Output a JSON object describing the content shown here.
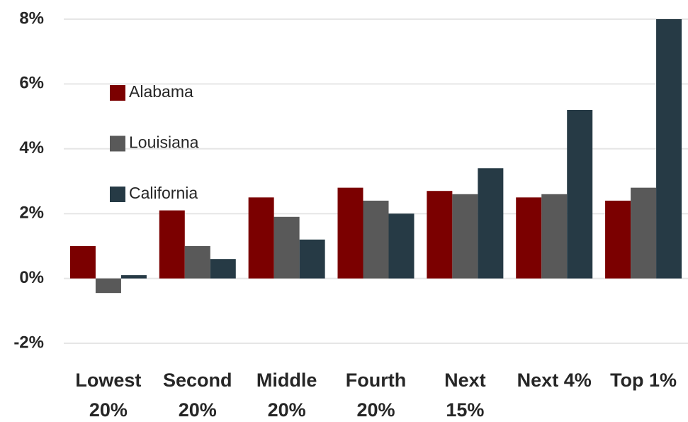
{
  "chart_data": {
    "type": "bar",
    "categories": [
      "Lowest 20%",
      "Second 20%",
      "Middle 20%",
      "Fourth 20%",
      "Next 15%",
      "Next 4%",
      "Top 1%"
    ],
    "series": [
      {
        "name": "Alabama",
        "color": "#7b0000",
        "values": [
          1.0,
          2.1,
          2.5,
          2.8,
          2.7,
          2.5,
          2.4
        ]
      },
      {
        "name": "Louisiana",
        "color": "#595959",
        "values": [
          -0.45,
          1.0,
          1.9,
          2.4,
          2.6,
          2.6,
          2.8
        ]
      },
      {
        "name": "California",
        "color": "#263a45",
        "values": [
          0.1,
          0.6,
          1.2,
          2.0,
          3.4,
          5.2,
          8.0
        ]
      }
    ],
    "ylim": [
      -2,
      8
    ],
    "yticks": [
      {
        "value": -2,
        "label": "-2%"
      },
      {
        "value": 0,
        "label": "0%"
      },
      {
        "value": 2,
        "label": "2%"
      },
      {
        "value": 4,
        "label": "4%"
      },
      {
        "value": 6,
        "label": "6%"
      },
      {
        "value": 8,
        "label": "8%"
      }
    ],
    "grid": true,
    "legend": "upper left"
  }
}
